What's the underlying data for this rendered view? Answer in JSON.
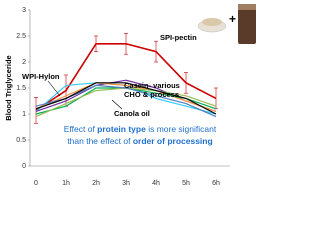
{
  "chart_data": {
    "type": "line",
    "y_label": "Blood Triglyceride",
    "categories": [
      "0",
      "1h",
      "2h",
      "3h",
      "4h",
      "5h",
      "6h"
    ],
    "ylim": [
      0,
      3
    ],
    "yticks": [
      0,
      0.5,
      1,
      1.5,
      2,
      2.5,
      3
    ],
    "series": [
      {
        "color": "#cc0000",
        "values": [
          1.07,
          1.45,
          2.35,
          2.35,
          2.2,
          1.6,
          1.3
        ],
        "errors": [
          0.25,
          0.3,
          0.15,
          0.2,
          0.2,
          0.2,
          0.2
        ]
      },
      {
        "color": "#33ccff",
        "values": [
          1.05,
          1.55,
          1.6,
          1.55,
          1.3,
          1.15,
          1.0
        ]
      },
      {
        "color": "#7030a0",
        "values": [
          1.05,
          1.25,
          1.55,
          1.65,
          1.5,
          1.25,
          1.05
        ]
      },
      {
        "color": "#f79646",
        "values": [
          1.1,
          1.35,
          1.6,
          1.55,
          1.45,
          1.25,
          1.05
        ]
      },
      {
        "color": "#00b050",
        "values": [
          1.0,
          1.15,
          1.5,
          1.5,
          1.4,
          1.3,
          1.1
        ]
      },
      {
        "color": "#9bbb59",
        "values": [
          0.95,
          1.2,
          1.45,
          1.5,
          1.45,
          1.35,
          1.15
        ]
      },
      {
        "color": "#4f81bd",
        "values": [
          1.15,
          1.3,
          1.55,
          1.5,
          1.35,
          1.2,
          0.95
        ]
      },
      {
        "color": "#000000",
        "values": [
          1.1,
          1.3,
          1.6,
          1.6,
          1.45,
          1.3,
          1.0
        ]
      }
    ],
    "annotations": [
      "SPI-pectin",
      "WPI-Hylon",
      "Casein- various",
      "CHO & process",
      "Canola oil"
    ],
    "note": [
      [
        "Effect of ",
        "protein type",
        " is more significant"
      ],
      [
        "than the effect of ",
        "order of processing"
      ]
    ]
  }
}
